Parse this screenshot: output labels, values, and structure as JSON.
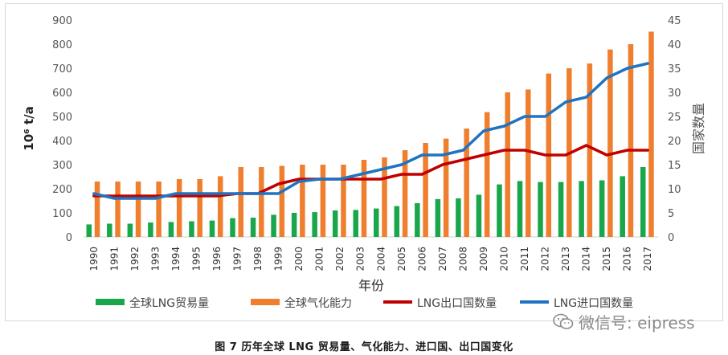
{
  "chart_data": {
    "type": "bar+line",
    "categories": [
      "1990",
      "1991",
      "1992",
      "1993",
      "1994",
      "1995",
      "1996",
      "1997",
      "1998",
      "1999",
      "2000",
      "2001",
      "2002",
      "2003",
      "2004",
      "2005",
      "2006",
      "2007",
      "2008",
      "2009",
      "2010",
      "2011",
      "2012",
      "2013",
      "2014",
      "2015",
      "2016",
      "2017"
    ],
    "xlabel": "年份",
    "ylabel_left": "10⁶ t/a",
    "ylabel_right": "国家数量",
    "ylim_left": [
      0,
      900
    ],
    "ylim_right": [
      0,
      45
    ],
    "yticks_left": [
      0,
      100,
      200,
      300,
      400,
      500,
      600,
      700,
      800,
      900
    ],
    "yticks_right": [
      0,
      5,
      10,
      15,
      20,
      25,
      30,
      35,
      40,
      45
    ],
    "series": [
      {
        "name": "全球LNG贸易量",
        "kind": "bar",
        "axis": "left",
        "color": "#1aa64a",
        "values": [
          52,
          55,
          55,
          60,
          62,
          65,
          68,
          78,
          80,
          92,
          100,
          103,
          110,
          112,
          118,
          128,
          140,
          157,
          160,
          175,
          218,
          232,
          228,
          228,
          232,
          235,
          252,
          290
        ]
      },
      {
        "name": "全球气化能力",
        "kind": "bar",
        "axis": "left",
        "color": "#ef7f2e",
        "values": [
          230,
          230,
          230,
          230,
          240,
          240,
          252,
          290,
          290,
          295,
          300,
          300,
          300,
          320,
          330,
          360,
          390,
          408,
          450,
          518,
          600,
          612,
          678,
          700,
          720,
          778,
          800,
          852
        ]
      },
      {
        "name": "LNG出口国数量",
        "kind": "line",
        "axis": "right",
        "color": "#c00000",
        "values": [
          8.5,
          8.5,
          8.5,
          8.5,
          8.5,
          8.5,
          8.5,
          9,
          9,
          11,
          12,
          12,
          12,
          12,
          12,
          13,
          13,
          15,
          16,
          17,
          18,
          18,
          17,
          17,
          19,
          17,
          18,
          18
        ]
      },
      {
        "name": "LNG进口国数量",
        "kind": "line",
        "axis": "right",
        "color": "#1f73c0",
        "values": [
          9,
          8,
          8,
          8,
          9,
          9,
          9,
          9,
          9,
          9,
          11.5,
          12,
          12,
          13,
          14,
          15,
          17,
          17,
          18,
          22,
          23,
          25,
          25,
          28,
          29,
          33,
          35,
          36
        ]
      }
    ],
    "legend_position": "bottom"
  },
  "caption": "图 7   历年全球 LNG 贸易量、气化能力、进口国、出口国变化",
  "watermark": {
    "text": "微信号: eipress",
    "icon": "wechat-icon"
  }
}
